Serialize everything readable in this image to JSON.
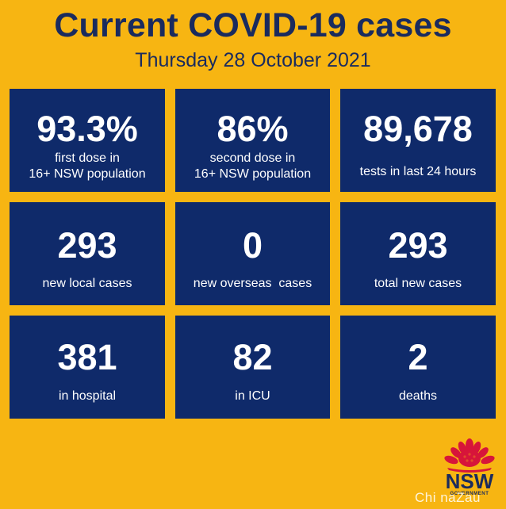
{
  "header": {
    "title": "Current COVID-19 cases",
    "date": "Thursday 28 October 2021"
  },
  "tiles": [
    {
      "value": "93.3%",
      "label_lines": [
        "first dose in",
        "16+ NSW population"
      ]
    },
    {
      "value": "86%",
      "label_lines": [
        "second dose in",
        "16+ NSW population"
      ]
    },
    {
      "value": "89,678",
      "label_lines": [
        "tests in last 24 hours"
      ]
    },
    {
      "value": "293",
      "label_lines": [
        "new local cases"
      ]
    },
    {
      "value": "0",
      "label_lines": [
        "new overseas  cases"
      ]
    },
    {
      "value": "293",
      "label_lines": [
        "total new cases"
      ]
    },
    {
      "value": "381",
      "label_lines": [
        "in hospital"
      ]
    },
    {
      "value": "82",
      "label_lines": [
        "in ICU"
      ]
    },
    {
      "value": "2",
      "label_lines": [
        "deaths"
      ]
    }
  ],
  "logo": {
    "icon": "waratah-flower-icon",
    "word": "NSW",
    "subtext": "GOVERNMENT"
  },
  "watermark": "Chi naZau",
  "colors": {
    "background": "#F7B512",
    "tile": "#0F2A6A",
    "title_text": "#1A2B5E",
    "tile_text": "#FFFFFF",
    "logo_red": "#D7153A"
  }
}
